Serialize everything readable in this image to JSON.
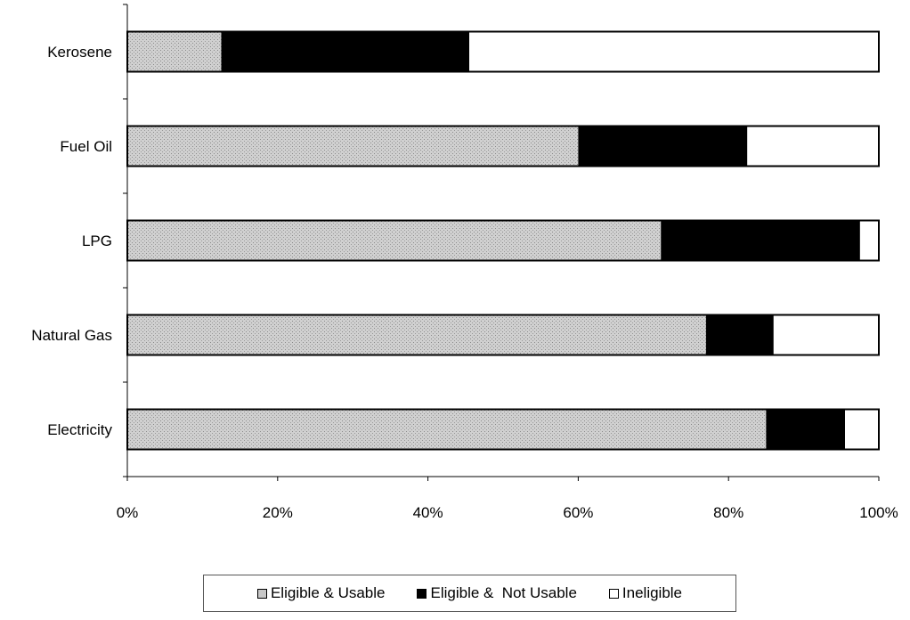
{
  "chart_data": {
    "type": "bar",
    "orientation": "horizontal",
    "stacked": "percent",
    "categories": [
      "Kerosene",
      "Fuel Oil",
      "LPG",
      "Natural Gas",
      "Electricity"
    ],
    "series": [
      {
        "name": "Eligible & Usable",
        "values": [
          12.5,
          60,
          71,
          77,
          85
        ],
        "color": "#c8c8c8"
      },
      {
        "name": "Eligible &  Not Usable",
        "values": [
          33,
          22.5,
          26.5,
          9,
          10.5
        ],
        "color": "#000000"
      },
      {
        "name": "Ineligible",
        "values": [
          54.5,
          17.5,
          2.5,
          14,
          4.5
        ],
        "color": "#ffffff"
      }
    ],
    "xticks": [
      "0%",
      "20%",
      "40%",
      "60%",
      "80%",
      "100%"
    ],
    "xlim": [
      0,
      100
    ],
    "grid": false,
    "legend_position": "bottom"
  }
}
